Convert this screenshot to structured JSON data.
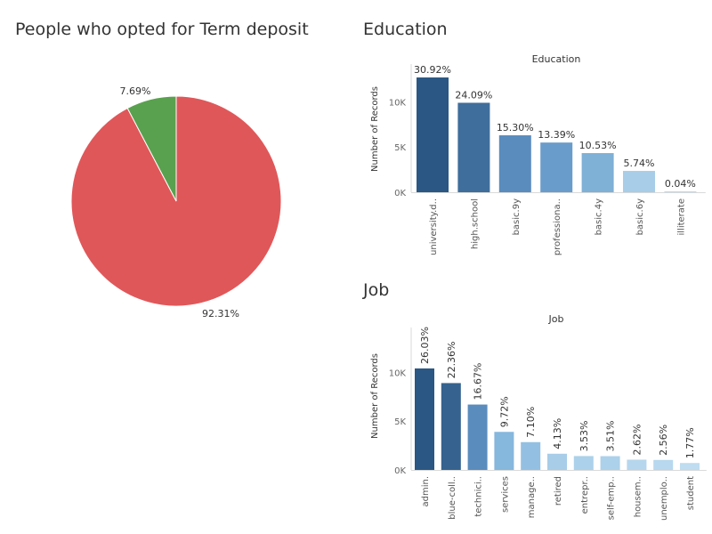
{
  "sheets": {
    "pie_title": "People who opted for Term deposit",
    "education_title": "Education",
    "job_title": "Job"
  },
  "chart_data": [
    {
      "type": "pie",
      "title": "People who opted for Term deposit",
      "labels": [
        "92.31%",
        "7.69%"
      ],
      "values": [
        92.31,
        7.69
      ],
      "colors": [
        "#e05759",
        "#59a14f"
      ]
    },
    {
      "type": "bar",
      "title": "Education",
      "xlabel": "",
      "ylabel": "Number of Records",
      "ylim": [
        0,
        13000
      ],
      "yticks": [
        {
          "value": 0,
          "label": "0K"
        },
        {
          "value": 5000,
          "label": "5K"
        },
        {
          "value": 10000,
          "label": "10K"
        }
      ],
      "categories": [
        "university.d..",
        "high.school",
        "basic.9y",
        "professiona..",
        "basic.4y",
        "basic.6y",
        "illiterate"
      ],
      "values": [
        12700,
        9900,
        6300,
        5500,
        4330,
        2360,
        18
      ],
      "data_labels": [
        "30.92%",
        "24.09%",
        "15.30%",
        "13.39%",
        "10.53%",
        "5.74%",
        "0.04%"
      ],
      "colors": [
        "#2a5783",
        "#3f6e9c",
        "#5a8cbd",
        "#6a9ccb",
        "#7fb0d6",
        "#a7cde9",
        "#bcdaf0"
      ]
    },
    {
      "type": "bar",
      "title": "Job",
      "xlabel": "",
      "ylabel": "Number of Records",
      "ylim": [
        0,
        13500
      ],
      "yticks": [
        {
          "value": 0,
          "label": "0K"
        },
        {
          "value": 5000,
          "label": "5K"
        },
        {
          "value": 10000,
          "label": "10K"
        }
      ],
      "categories": [
        "admin.",
        "blue-coll..",
        "technici..",
        "services",
        "manage..",
        "retired",
        "entrepr..",
        "self-emp..",
        "housem..",
        "unemplo..",
        "student"
      ],
      "values": [
        10400,
        8900,
        6700,
        3900,
        2850,
        1660,
        1420,
        1410,
        1050,
        1020,
        710
      ],
      "data_labels": [
        "26.03%",
        "22.36%",
        "16.67%",
        "9.72%",
        "7.10%",
        "4.13%",
        "3.53%",
        "3.51%",
        "2.62%",
        "2.56%",
        "1.77%"
      ],
      "colors": [
        "#2a5783",
        "#35628f",
        "#5a8cbd",
        "#86b7dd",
        "#93c0e2",
        "#a7cde9",
        "#acd1ea",
        "#acd1ea",
        "#b5d6ed",
        "#b7d8ee",
        "#bfdcf0"
      ]
    }
  ]
}
